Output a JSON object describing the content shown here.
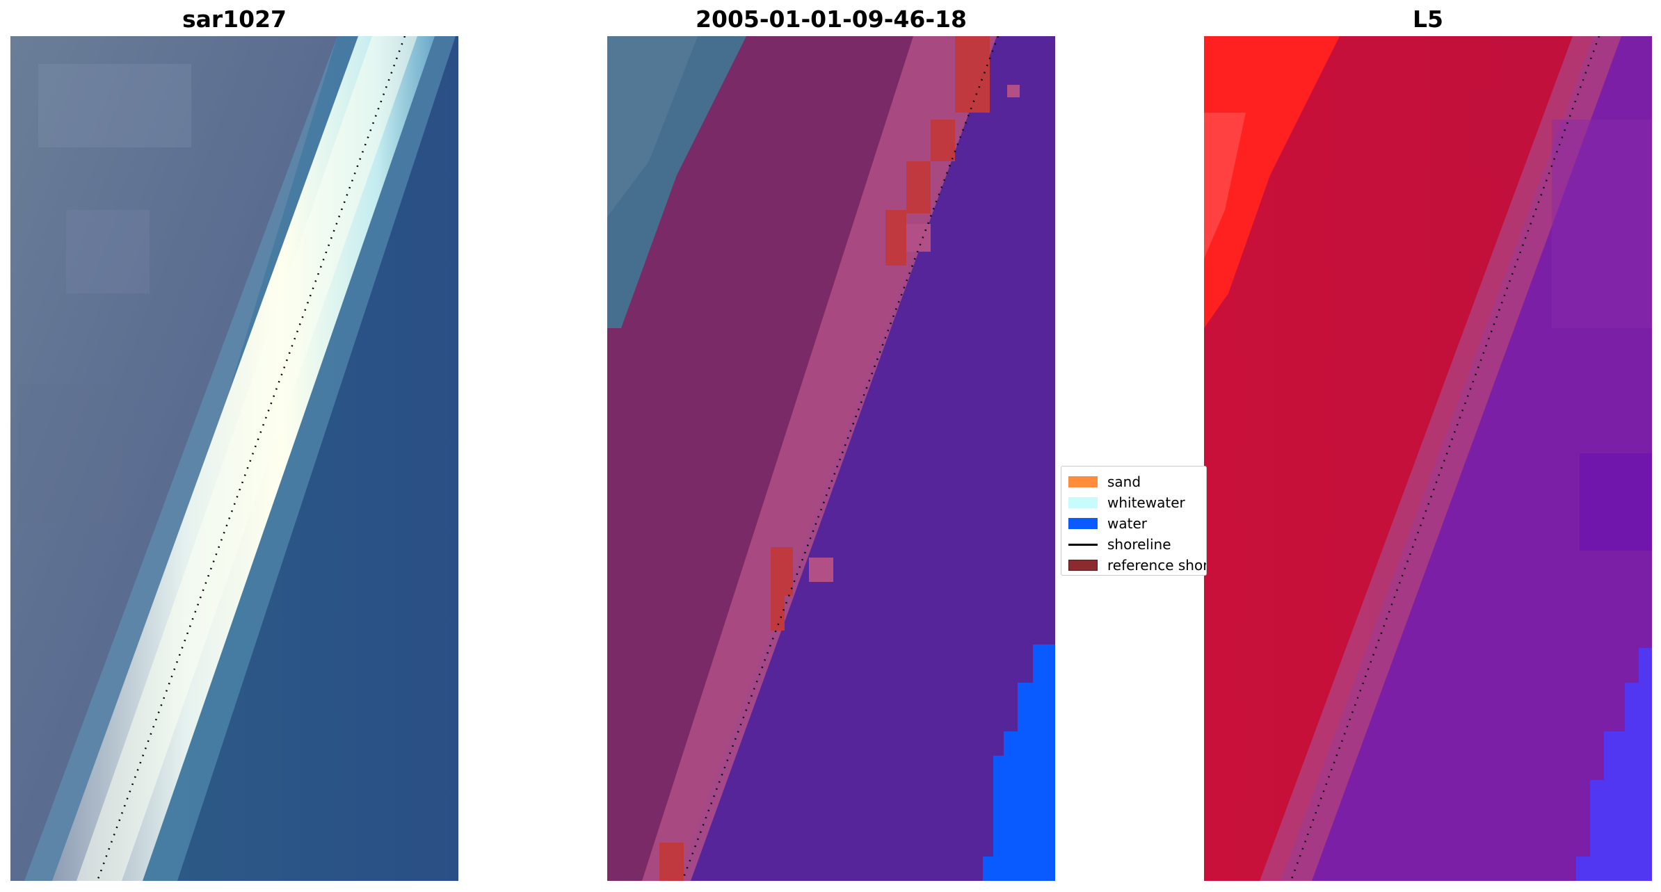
{
  "panels": [
    {
      "title": "sar1027"
    },
    {
      "title": "2005-01-01-09-46-18"
    },
    {
      "title": "L5"
    }
  ],
  "legend": {
    "items": [
      {
        "label": "sand",
        "color": "#ff8c3a"
      },
      {
        "label": "whitewater",
        "color": "#c8fbfb"
      },
      {
        "label": "water",
        "color": "#0a5bff"
      },
      {
        "label": "shoreline",
        "color": "#000000"
      },
      {
        "label": "reference shoreline",
        "color": "#8b2b30"
      }
    ]
  },
  "colors": {
    "water_rgb": "#2f5a86",
    "land_rgb": "#5f6f8e",
    "sand_overlay": "#7a2a66",
    "water_overlay": "#56259a",
    "swash_overlay": "#b24f86",
    "index_high": "#c8102e",
    "index_low": "#7b1fa6"
  }
}
